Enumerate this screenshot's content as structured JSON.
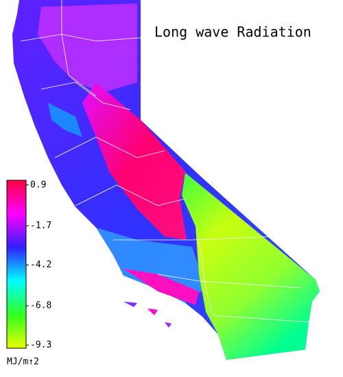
{
  "title": "Long wave Radiation",
  "colorbar": {
    "ticks": [
      0.9,
      -1.7,
      -4.2,
      -6.8,
      -9.3
    ],
    "lim": [
      -9.5,
      1.2
    ],
    "unit": "MJ/m↑2",
    "colors": [
      "#ff0040",
      "#ff00ff",
      "#3020ff",
      "#00ffff",
      "#30ff20",
      "#e8ff00"
    ]
  }
}
